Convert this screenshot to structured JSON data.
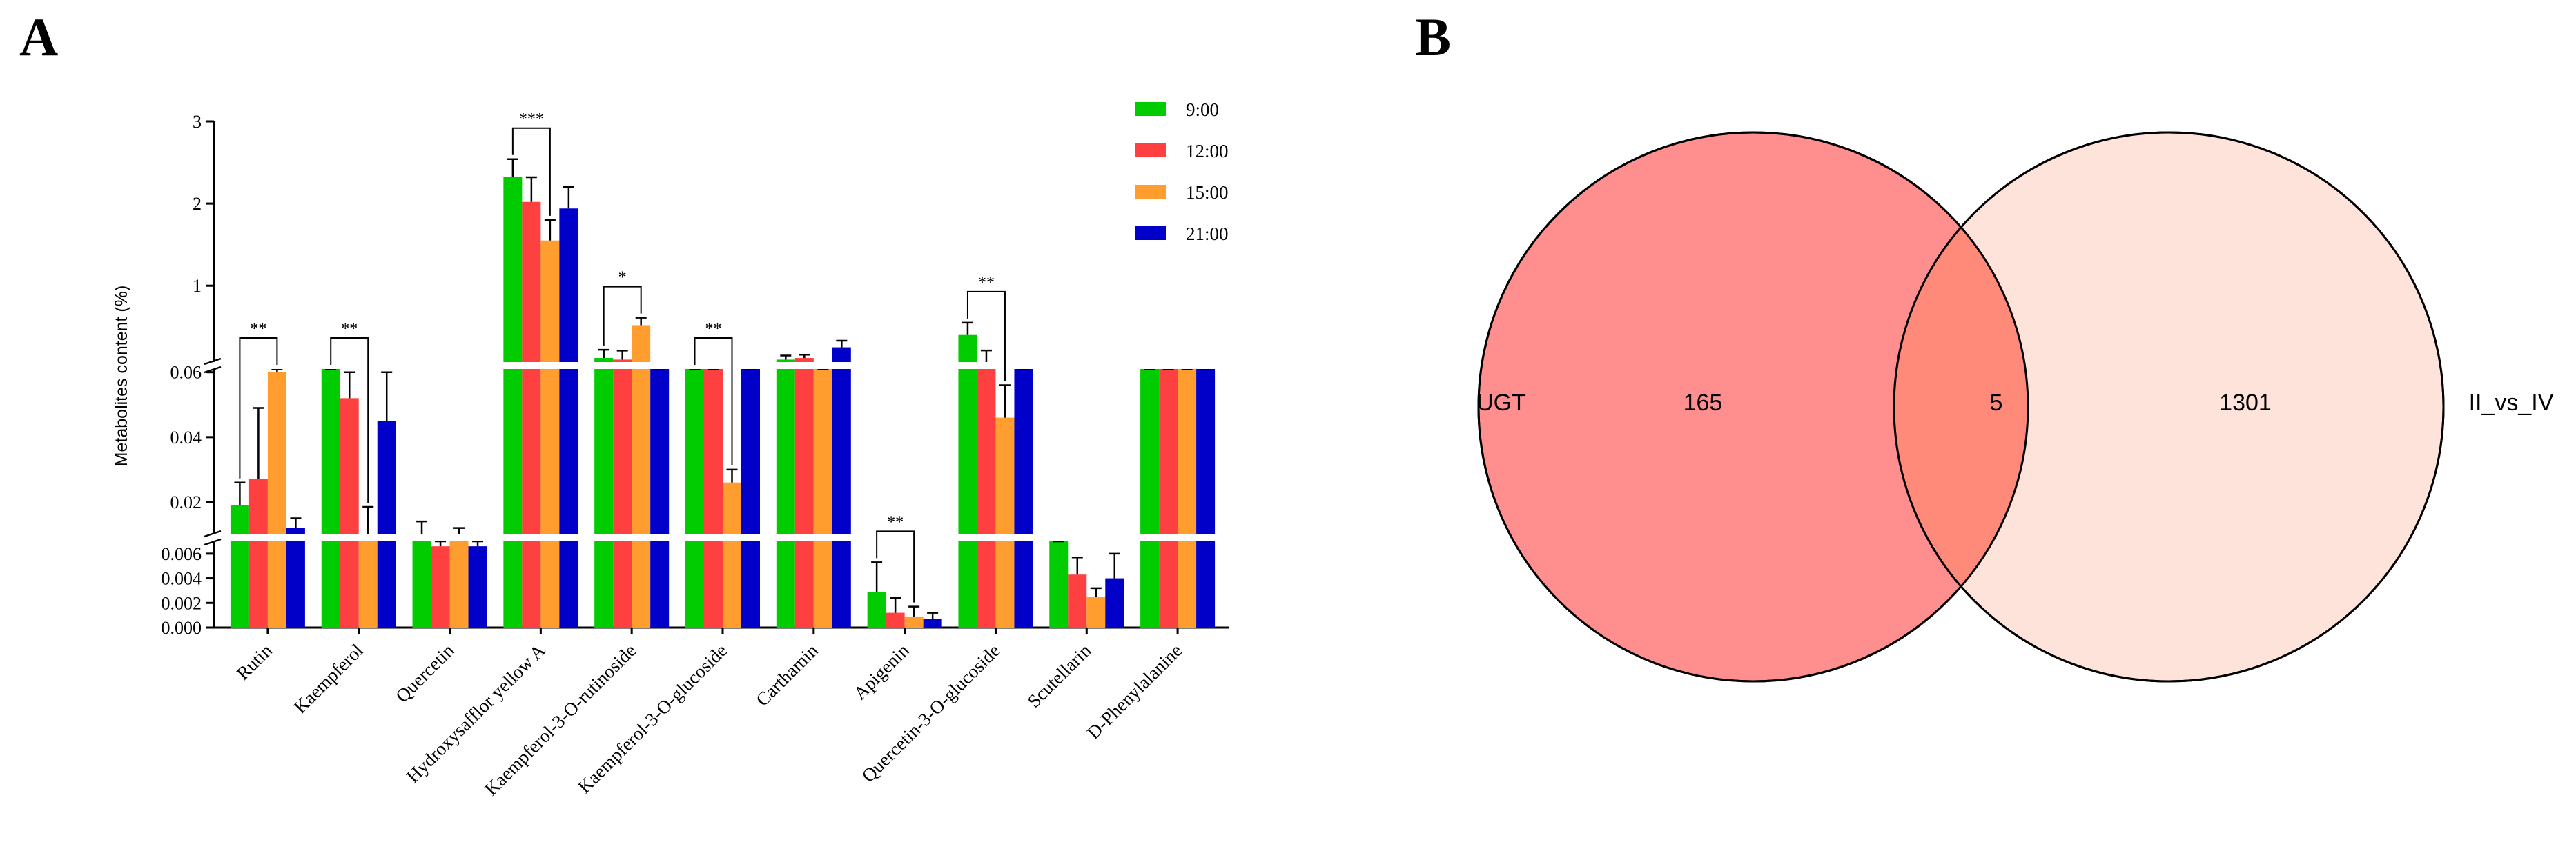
{
  "panel_a": {
    "label": "A"
  },
  "panel_b": {
    "label": "B"
  },
  "chart_data": [
    {
      "type": "bar",
      "title": "",
      "xlabel": "",
      "ylabel": "Metabolites content (%)",
      "axis_segments": [
        {
          "ylim": [
            0,
            0.007
          ],
          "ticks": [
            "0.000",
            "0.002",
            "0.004",
            "0.006"
          ],
          "tick_values": [
            0,
            0.002,
            0.004,
            0.006
          ]
        },
        {
          "ylim": [
            0.01,
            0.061
          ],
          "ticks": [
            "0.02",
            "0.04",
            "0.06"
          ],
          "tick_values": [
            0.02,
            0.04,
            0.06
          ]
        },
        {
          "ylim": [
            0.07,
            3
          ],
          "ticks": [
            "1",
            "2",
            "3"
          ],
          "tick_values": [
            1,
            2,
            3
          ]
        }
      ],
      "categories": [
        "Rutin",
        "Kaempferol",
        "Quercetin",
        "Hydroxysafflor yellow A",
        "Kaempferol-3-O-rutinoside",
        "Kaempferol-3-O-glucoside",
        "Carthamin",
        "Apigenin",
        "Quercetin-3-O-glucoside",
        "Scutellarin",
        "D-Phenylalanine"
      ],
      "legend_position": "top-right",
      "colors": [
        "#00cc00",
        "#ff4040",
        "#ff9d2e",
        "#0000c8"
      ],
      "series": [
        {
          "name": "9:00",
          "values": [
            0.019,
            0.062,
            0.0085,
            2.32,
            0.12,
            0.062,
            0.1,
            0.0029,
            0.4,
            0.0072,
            0.062
          ],
          "errors": [
            0.007,
            0.003,
            0.0055,
            0.22,
            0.1,
            0.003,
            0.05,
            0.0024,
            0.15,
            0.0013,
            0.003
          ]
        },
        {
          "name": "12:00",
          "values": [
            0.027,
            0.052,
            0.0066,
            2.02,
            0.1,
            0.061,
            0.12,
            0.0012,
            0.062,
            0.0043,
            0.061
          ],
          "errors": [
            0.022,
            0.008,
            0.002,
            0.3,
            0.11,
            0.002,
            0.04,
            0.0012,
            0.15,
            0.0014,
            0.003
          ]
        },
        {
          "name": "15:00",
          "values": [
            0.06,
            0.0095,
            0.0085,
            1.55,
            0.52,
            0.026,
            0.061,
            0.0009,
            0.046,
            0.0025,
            0.061
          ],
          "errors": [
            0.005,
            0.009,
            0.0035,
            0.25,
            0.09,
            0.004,
            0.003,
            0.0008,
            0.01,
            0.0007,
            0.003
          ]
        },
        {
          "name": "21:00",
          "values": [
            0.012,
            0.045,
            0.0066,
            1.94,
            0.061,
            0.061,
            0.25,
            0.0007,
            0.062,
            0.004,
            0.061
          ],
          "errors": [
            0.003,
            0.015,
            0.0005,
            0.26,
            0.002,
            0.002,
            0.08,
            0.0005,
            0.002,
            0.002,
            0.002
          ]
        }
      ],
      "significance": [
        {
          "category": "Rutin",
          "from": "9:00",
          "to": "15:00",
          "label": "**"
        },
        {
          "category": "Kaempferol",
          "from": "9:00",
          "to": "15:00",
          "label": "**"
        },
        {
          "category": "Hydroxysafflor yellow A",
          "from": "9:00",
          "to": "15:00",
          "label": "***"
        },
        {
          "category": "Kaempferol-3-O-rutinoside",
          "from": "9:00",
          "to": "15:00",
          "label": "*"
        },
        {
          "category": "Kaempferol-3-O-glucoside",
          "from": "9:00",
          "to": "15:00",
          "label": "**"
        },
        {
          "category": "Apigenin",
          "from": "9:00",
          "to": "15:00",
          "label": "**"
        },
        {
          "category": "Quercetin-3-O-glucoside",
          "from": "9:00",
          "to": "15:00",
          "label": "**"
        }
      ]
    },
    {
      "type": "venn",
      "sets": [
        {
          "name": "UGT",
          "only": "165",
          "color": "#ff8f8f"
        },
        {
          "name": "II_vs_IV",
          "only": "1301",
          "color": "#fde3d9"
        }
      ],
      "intersection": "5",
      "intersection_color": "#ff8a7a"
    }
  ]
}
